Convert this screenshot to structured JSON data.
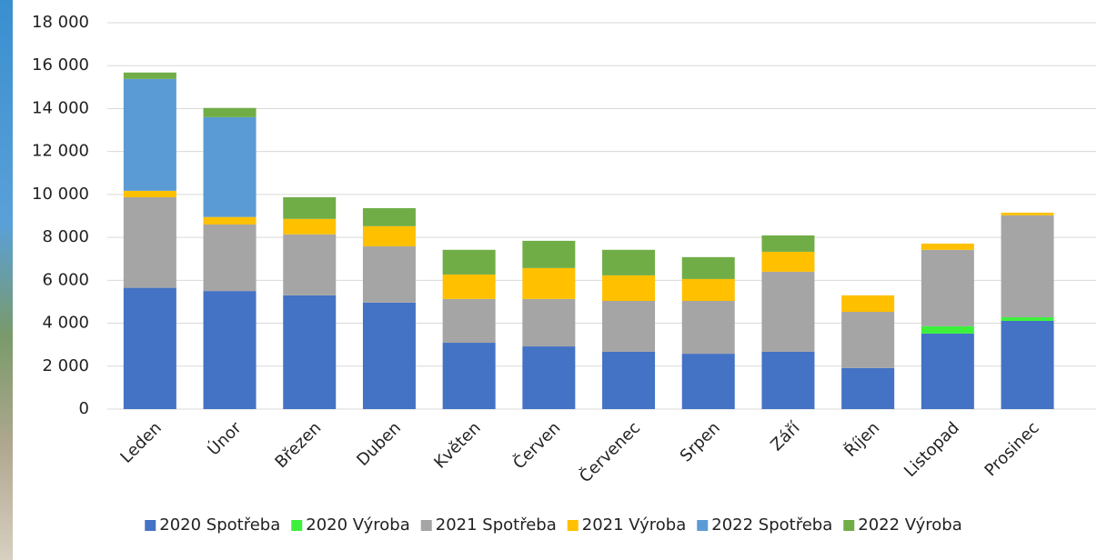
{
  "chart_data": {
    "type": "stacked_bar",
    "categories": [
      "Leden",
      "Únor",
      "Březen",
      "Duben",
      "Květen",
      "Červen",
      "Červenec",
      "Srpen",
      "Září",
      "Říjen",
      "Listopad",
      "Prosinec"
    ],
    "series": [
      {
        "name": "2020 Spotřeba",
        "color": "#4472c4",
        "values": [
          5650,
          5500,
          5300,
          4960,
          3090,
          2920,
          2670,
          2580,
          2670,
          1910,
          3520,
          4110
        ]
      },
      {
        "name": "2020 Výroba",
        "color": "#3cf03c",
        "values": [
          0,
          0,
          0,
          0,
          0,
          0,
          0,
          0,
          0,
          0,
          340,
          170
        ]
      },
      {
        "name": "2021 Spotřeba",
        "color": "#a5a5a5",
        "values": [
          4220,
          3100,
          2840,
          2620,
          2040,
          2210,
          2370,
          2460,
          3730,
          2620,
          3560,
          4750
        ]
      },
      {
        "name": "2021 Výroba",
        "color": "#ffc000",
        "values": [
          300,
          350,
          720,
          940,
          1140,
          1440,
          1190,
          1020,
          930,
          770,
          290,
          120
        ]
      },
      {
        "name": "2022 Spotřeba",
        "color": "#5b9bd5",
        "values": [
          5210,
          4650,
          0,
          0,
          0,
          0,
          0,
          0,
          0,
          0,
          0,
          0
        ]
      },
      {
        "name": "2022 Výroba",
        "color": "#70ad47",
        "values": [
          300,
          430,
          1010,
          840,
          1150,
          1270,
          1190,
          1020,
          760,
          0,
          0,
          0
        ]
      }
    ],
    "ylim": [
      0,
      18000
    ],
    "yticks": [
      0,
      {
        "value": 2000,
        "label": "2 000"
      },
      {
        "value": 4000,
        "label": "4 000"
      },
      {
        "value": 6000,
        "label": "6 000"
      },
      {
        "value": 8000,
        "label": "8 000"
      },
      {
        "value": 10000,
        "label": "10 000"
      },
      {
        "value": 12000,
        "label": "12 000"
      },
      {
        "value": 14000,
        "label": "14 000"
      },
      {
        "value": 16000,
        "label": "16 000"
      },
      {
        "value": 18000,
        "label": "18 000"
      }
    ],
    "grid": true,
    "legend": "bottom"
  }
}
